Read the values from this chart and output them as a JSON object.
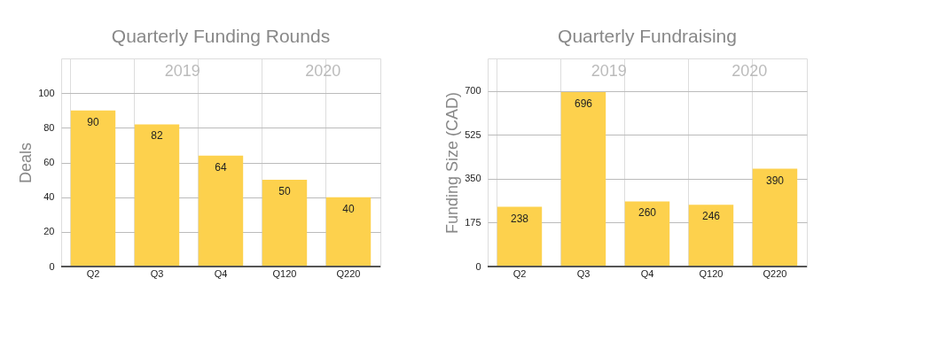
{
  "chart_data": [
    {
      "type": "bar",
      "title": "Quarterly Funding Rounds",
      "ylabel": "Deals",
      "categories": [
        "Q2",
        "Q3",
        "Q4",
        "Q120",
        "Q220"
      ],
      "values": [
        90,
        82,
        64,
        50,
        40
      ],
      "color": "#fdd14d",
      "ylim": [
        0,
        120
      ],
      "yticks": [
        0,
        20,
        40,
        60,
        80,
        100
      ],
      "grid": true,
      "data_labels": true,
      "annotations": [
        "2019",
        "2020"
      ]
    },
    {
      "type": "bar",
      "title": "Quarterly Fundraising",
      "ylabel": "Funding Size (CAD)",
      "categories": [
        "Q2",
        "Q3",
        "Q4",
        "Q120",
        "Q220"
      ],
      "values": [
        238,
        696,
        260,
        246,
        390
      ],
      "color": "#fdd14d",
      "ylim": [
        0,
        830
      ],
      "yticks": [
        0,
        175,
        350,
        525,
        700
      ],
      "grid": true,
      "data_labels": true,
      "annotations": [
        "2019",
        "2020"
      ]
    }
  ]
}
